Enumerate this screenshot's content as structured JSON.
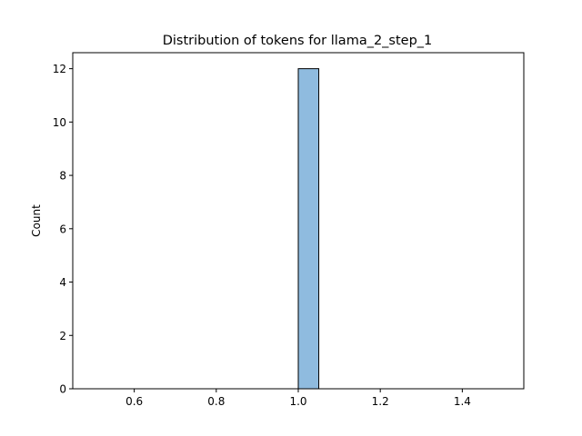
{
  "chart_data": {
    "type": "bar",
    "title": "Distribution of tokens for llama_2_step_1",
    "xlabel": "",
    "ylabel": "Count",
    "xlim": [
      0.45,
      1.55
    ],
    "ylim": [
      0,
      12.6
    ],
    "x_ticks": [
      0.6,
      0.8,
      1.0,
      1.2,
      1.4
    ],
    "x_tick_labels": [
      "0.6",
      "0.8",
      "1.0",
      "1.2",
      "1.4"
    ],
    "y_ticks": [
      0,
      2,
      4,
      6,
      8,
      10,
      12
    ],
    "y_tick_labels": [
      "0",
      "2",
      "4",
      "6",
      "8",
      "10",
      "12"
    ],
    "bin_width": 0.05,
    "bins": [
      {
        "x0": 0.5,
        "x1": 0.55,
        "count": 0
      },
      {
        "x0": 0.55,
        "x1": 0.6,
        "count": 0
      },
      {
        "x0": 0.6,
        "x1": 0.65,
        "count": 0
      },
      {
        "x0": 0.65,
        "x1": 0.7,
        "count": 0
      },
      {
        "x0": 0.7,
        "x1": 0.75,
        "count": 0
      },
      {
        "x0": 0.75,
        "x1": 0.8,
        "count": 0
      },
      {
        "x0": 0.8,
        "x1": 0.85,
        "count": 0
      },
      {
        "x0": 0.85,
        "x1": 0.9,
        "count": 0
      },
      {
        "x0": 0.9,
        "x1": 0.95,
        "count": 0
      },
      {
        "x0": 0.95,
        "x1": 1.0,
        "count": 0
      },
      {
        "x0": 1.0,
        "x1": 1.05,
        "count": 12
      },
      {
        "x0": 1.05,
        "x1": 1.1,
        "count": 0
      },
      {
        "x0": 1.1,
        "x1": 1.15,
        "count": 0
      },
      {
        "x0": 1.15,
        "x1": 1.2,
        "count": 0
      },
      {
        "x0": 1.2,
        "x1": 1.25,
        "count": 0
      },
      {
        "x0": 1.25,
        "x1": 1.3,
        "count": 0
      },
      {
        "x0": 1.3,
        "x1": 1.35,
        "count": 0
      },
      {
        "x0": 1.35,
        "x1": 1.4,
        "count": 0
      },
      {
        "x0": 1.4,
        "x1": 1.45,
        "count": 0
      },
      {
        "x0": 1.45,
        "x1": 1.5,
        "count": 0
      }
    ],
    "bar_color": "#8fbbdf",
    "edge_color": "#000000",
    "grid": false,
    "legend": "none"
  }
}
